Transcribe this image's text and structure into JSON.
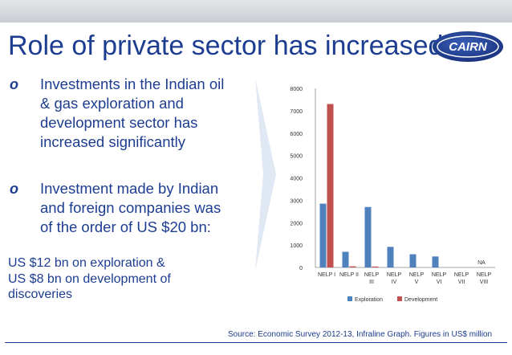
{
  "slide": {
    "title": "Role of private sector has increased",
    "logo_text": "CAIRN",
    "bullets": [
      {
        "mark": "o",
        "lines": [
          "Investments in the Indian oil",
          "& gas exploration and",
          "development sector has",
          "increased significantly"
        ]
      },
      {
        "mark": "o",
        "lines": [
          "Investment made by Indian",
          "and foreign companies was",
          "of the order of US $20 bn:"
        ]
      }
    ],
    "summary_lines": [
      "US $12 bn on exploration &",
      "US $8 bn on development of",
      "discoveries"
    ],
    "source": "Source: Economic Survey 2012-13, Infraline Graph. Figures in US$ million"
  },
  "colors": {
    "title": "#1d3d91",
    "exploration": "#4f81bd",
    "development": "#c0504d",
    "arrow": "#dfe8f3",
    "logo": "#1f3c8c"
  },
  "chart_data": {
    "type": "bar",
    "categories": [
      [
        "NELP I"
      ],
      [
        "NELP II"
      ],
      [
        "NELP",
        "III"
      ],
      [
        "NELP",
        "IV"
      ],
      [
        "NELP",
        "V"
      ],
      [
        "NELP",
        "VI"
      ],
      [
        "NELP",
        "VII"
      ],
      [
        "NELP",
        "VIII"
      ]
    ],
    "series": [
      {
        "name": "Exploration",
        "values": [
          2850,
          700,
          2700,
          920,
          590,
          490,
          0,
          0
        ]
      },
      {
        "name": "Development",
        "values": [
          7300,
          50,
          40,
          0,
          0,
          0,
          0,
          0
        ]
      }
    ],
    "ylim": [
      0,
      8000
    ],
    "yticks": [
      0,
      1000,
      2000,
      3000,
      4000,
      5000,
      6000,
      7000,
      8000
    ],
    "annotations": [
      {
        "category_index": 7,
        "text": "NA"
      }
    ],
    "legend_position": "bottom",
    "grid": false
  }
}
